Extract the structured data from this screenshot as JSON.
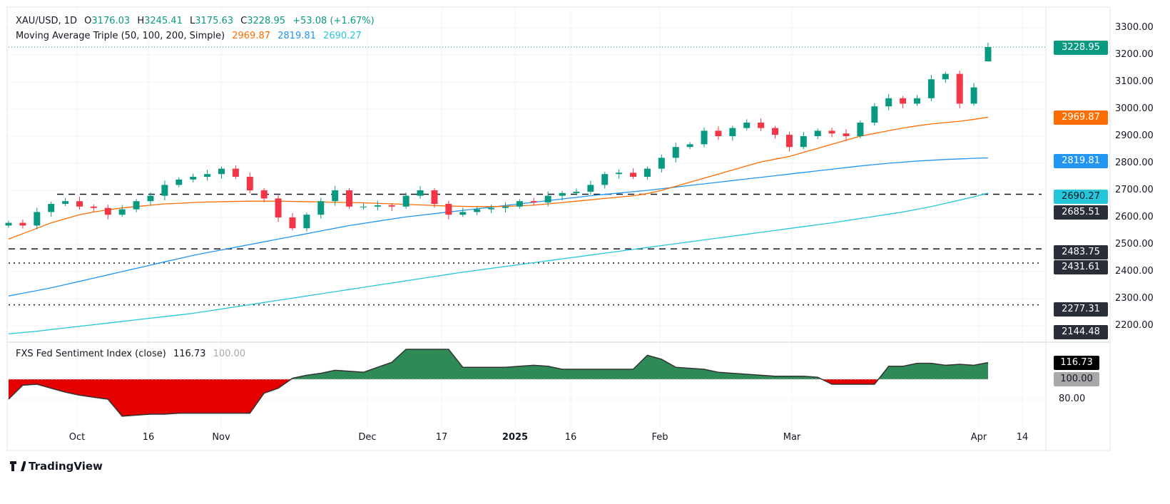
{
  "header": {
    "symbol": "XAU/USD, 1D",
    "open_label": "O",
    "open": "3176.03",
    "high_label": "H",
    "high": "3245.41",
    "low_label": "L",
    "low": "3175.63",
    "close_label": "C",
    "close": "3228.95",
    "change": "+53.08 (+1.67%)"
  },
  "ma_legend": {
    "title": "Moving Average Triple (50, 100, 200, Simple)",
    "ma50": "2969.87",
    "ma100": "2819.81",
    "ma200": "2690.27"
  },
  "indicator": {
    "title": "FXS Fed Sentiment Index (close)",
    "value": "116.73",
    "baseline": "100.00",
    "axis_labels": [
      "80.00"
    ]
  },
  "price_tags": {
    "last": "3228.95",
    "ma50": "2969.87",
    "ma100": "2819.81",
    "ma200": "2690.27",
    "level1": "2685.51",
    "level2": "2483.75",
    "level3": "2431.61",
    "level4": "2277.31",
    "level5": "2144.48",
    "ind_value": "116.73",
    "ind_base": "100.00"
  },
  "colors": {
    "up": "#089981",
    "down": "#f23645",
    "ma50": "#ff6d00",
    "ma100": "#2196f3",
    "ma200": "#26c6da",
    "sentiment_pos": "#2e8b57",
    "sentiment_neg": "#e50000"
  },
  "brand": "TradingView",
  "chart_data": {
    "type": "candlestick",
    "symbol": "XAU/USD",
    "interval": "1D",
    "yticks": [
      "3300.00",
      "3200.00",
      "3100.00",
      "3000.00",
      "2900.00",
      "2800.00",
      "2700.00",
      "2600.00",
      "2500.00",
      "2400.00",
      "2300.00",
      "2200.00"
    ],
    "xticks": [
      "Oct",
      "16",
      "Nov",
      "Dec",
      "17",
      "2025",
      "16",
      "Feb",
      "Mar",
      "Apr",
      "14"
    ],
    "ylim": [
      2130,
      3320
    ],
    "closes": [
      2580,
      2570,
      2620,
      2650,
      2660,
      2640,
      2635,
      2610,
      2630,
      2660,
      2680,
      2720,
      2740,
      2750,
      2760,
      2780,
      2750,
      2700,
      2670,
      2600,
      2560,
      2610,
      2660,
      2700,
      2640,
      2640,
      2645,
      2640,
      2680,
      2700,
      2650,
      2610,
      2620,
      2630,
      2635,
      2640,
      2660,
      2655,
      2680,
      2690,
      2695,
      2720,
      2760,
      2765,
      2750,
      2780,
      2820,
      2860,
      2870,
      2920,
      2900,
      2930,
      2950,
      2930,
      2905,
      2860,
      2900,
      2920,
      2910,
      2900,
      2950,
      3010,
      3040,
      3020,
      3040,
      3110,
      3130,
      3020,
      3080,
      3228.95
    ],
    "last_candle": {
      "open": 3176.03,
      "high": 3245.41,
      "low": 3175.63,
      "close": 3228.95
    },
    "ma50": [
      2520,
      2540,
      2560,
      2580,
      2595,
      2610,
      2620,
      2628,
      2635,
      2640,
      2645,
      2650,
      2652,
      2655,
      2657,
      2658,
      2659,
      2660,
      2660,
      2660,
      2659,
      2658,
      2657,
      2656,
      2655,
      2654,
      2652,
      2650,
      2648,
      2646,
      2644,
      2642,
      2641,
      2640,
      2640,
      2641,
      2643,
      2645,
      2650,
      2655,
      2660,
      2665,
      2670,
      2675,
      2680,
      2688,
      2700,
      2715,
      2730,
      2745,
      2760,
      2775,
      2790,
      2805,
      2815,
      2825,
      2840,
      2855,
      2870,
      2885,
      2900,
      2910,
      2920,
      2930,
      2938,
      2945,
      2950,
      2955,
      2962,
      2969.87
    ],
    "ma100": [
      2310,
      2320,
      2330,
      2340,
      2352,
      2364,
      2376,
      2388,
      2400,
      2412,
      2424,
      2436,
      2448,
      2460,
      2470,
      2480,
      2490,
      2500,
      2510,
      2520,
      2530,
      2540,
      2550,
      2560,
      2570,
      2578,
      2586,
      2594,
      2602,
      2608,
      2614,
      2620,
      2626,
      2632,
      2638,
      2644,
      2650,
      2656,
      2662,
      2668,
      2674,
      2680,
      2685,
      2690,
      2695,
      2700,
      2706,
      2712,
      2718,
      2724,
      2730,
      2736,
      2742,
      2748,
      2754,
      2760,
      2766,
      2772,
      2778,
      2784,
      2790,
      2795,
      2800,
      2804,
      2808,
      2811,
      2814,
      2816,
      2818,
      2819.81
    ],
    "ma200": [
      2170,
      2175,
      2180,
      2186,
      2192,
      2198,
      2204,
      2210,
      2216,
      2222,
      2228,
      2234,
      2240,
      2246,
      2254,
      2262,
      2270,
      2278,
      2286,
      2294,
      2302,
      2310,
      2318,
      2326,
      2334,
      2342,
      2350,
      2358,
      2366,
      2374,
      2382,
      2390,
      2398,
      2405,
      2412,
      2419,
      2426,
      2433,
      2440,
      2447,
      2454,
      2461,
      2468,
      2475,
      2482,
      2489,
      2496,
      2503,
      2510,
      2517,
      2524,
      2531,
      2538,
      2545,
      2552,
      2559,
      2566,
      2573,
      2580,
      2588,
      2596,
      2604,
      2612,
      2620,
      2630,
      2640,
      2652,
      2664,
      2676,
      2690.27
    ],
    "levels": [
      {
        "value": 2685.51,
        "style": "dashed"
      },
      {
        "value": 2483.75,
        "style": "dashed"
      },
      {
        "value": 2431.61,
        "style": "dotted"
      },
      {
        "value": 2277.31,
        "style": "dotted"
      }
    ],
    "sentiment": [
      80,
      94,
      95,
      91,
      87,
      84,
      82,
      80,
      63,
      64,
      65,
      65,
      66,
      66,
      66,
      66,
      66,
      66,
      86,
      91,
      101,
      104,
      106,
      109,
      108,
      107,
      112,
      117,
      130,
      130,
      130,
      130,
      112,
      112,
      112,
      112,
      113,
      114,
      113,
      110,
      110,
      110,
      110,
      110,
      110,
      124,
      120,
      112,
      111,
      110,
      107,
      106,
      105,
      104,
      103,
      103,
      103,
      102,
      95,
      95,
      95,
      95,
      113,
      113,
      116,
      116,
      114,
      115,
      114,
      116.73
    ],
    "sentiment_baseline": 100
  }
}
